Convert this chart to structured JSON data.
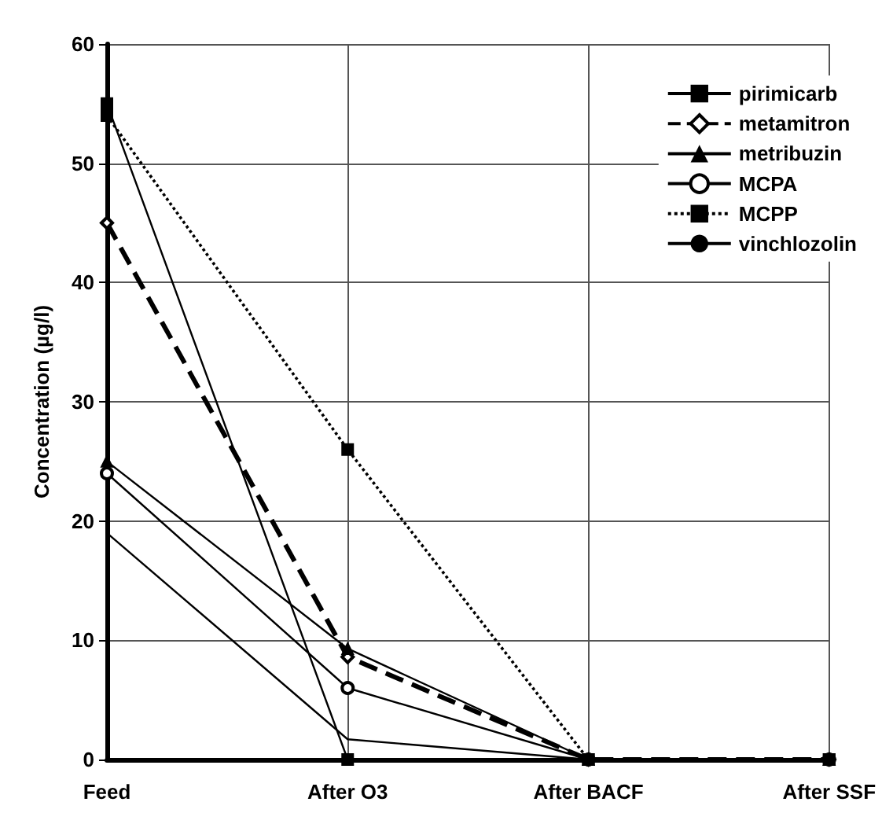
{
  "chart_data": {
    "type": "line",
    "ylabel": "Concentration (µg/l)",
    "categories": [
      "Feed",
      "After O3",
      "After BACF",
      "After SSF"
    ],
    "ylim": [
      0,
      60
    ],
    "yticks": [
      0,
      10,
      20,
      30,
      40,
      50,
      60
    ],
    "grid": true,
    "legend": "top right",
    "series": [
      {
        "name": "pirimicarb",
        "color": "#000000",
        "marker": "square",
        "line_style": "solid",
        "values": [
          55,
          0,
          0,
          0
        ]
      },
      {
        "name": "metamitron",
        "color": "#000000",
        "marker": "diamond",
        "line_style": "dashed",
        "values": [
          45,
          8.6,
          0,
          0
        ]
      },
      {
        "name": "metribuzin",
        "color": "#000000",
        "marker": "triangle",
        "line_style": "solid",
        "values": [
          25,
          9.3,
          0,
          0
        ]
      },
      {
        "name": "MCPA",
        "color": "#000000",
        "marker": "circle",
        "line_style": "solid",
        "values": [
          24,
          6,
          0,
          0
        ]
      },
      {
        "name": "MCPP",
        "color": "#000000",
        "marker": "square",
        "line_style": "dotted",
        "values": [
          54,
          26,
          0,
          0
        ]
      },
      {
        "name": "vinchlozolin",
        "color": "#000000",
        "marker": "none",
        "line_style": "solid",
        "values": [
          19,
          1.7,
          0,
          0
        ]
      }
    ]
  }
}
